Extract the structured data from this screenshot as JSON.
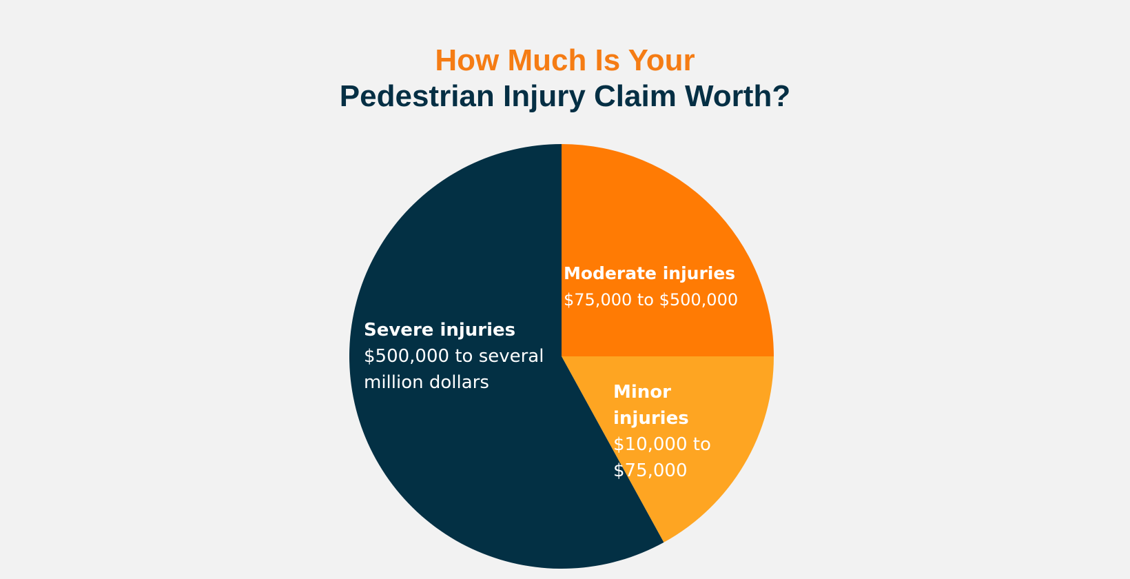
{
  "title": {
    "line1": "How Much Is Your",
    "line2": "Pedestrian Injury Claim Worth?"
  },
  "colors": {
    "title_accent": "#f57c14",
    "title_dark": "#052f44",
    "background": "#f2f2f2"
  },
  "chart_data": {
    "type": "pie",
    "title": "How Much Is Your Pedestrian Injury Claim Worth?",
    "slices": [
      {
        "label": "Moderate injuries",
        "range": "$75,000 to $500,000",
        "value": 25,
        "color": "#ff7b04"
      },
      {
        "label": "Minor injuries",
        "range": "$10,000 to $75,000",
        "value": 17,
        "color": "#fea522"
      },
      {
        "label": "Severe injuries",
        "range": "$500,000 to several million dollars",
        "value": 58,
        "color": "#033044"
      }
    ],
    "legend": "none"
  }
}
